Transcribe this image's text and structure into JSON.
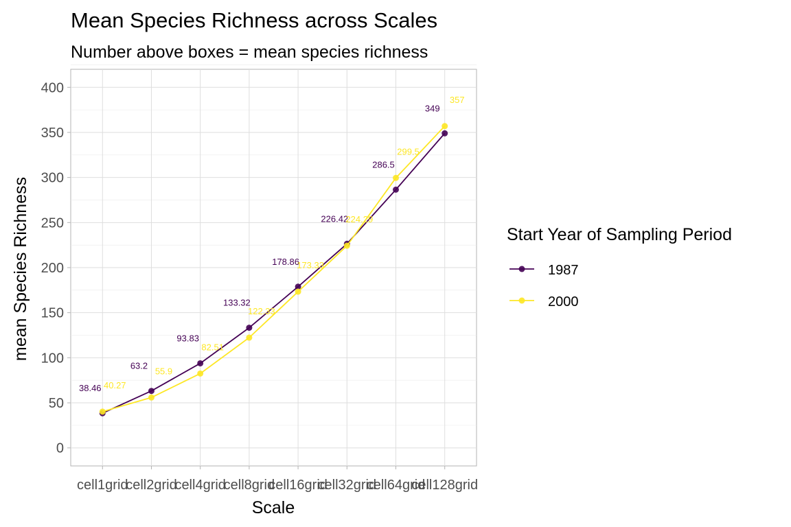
{
  "chart_data": {
    "type": "line",
    "title": "Mean Species Richness across Scales",
    "subtitle": "Number above boxes = mean species richness",
    "xlabel": "Scale",
    "ylabel": "mean Species Richness",
    "categories": [
      "cell1grid",
      "cell2grid",
      "cell4grid",
      "cell8grid",
      "cell16grid",
      "cell32grid",
      "cell64grid",
      "cell128grid"
    ],
    "ylim": [
      -20,
      420
    ],
    "yticks": [
      0,
      50,
      100,
      150,
      200,
      250,
      300,
      350,
      400
    ],
    "grid": true,
    "legend": {
      "title": "Start Year of Sampling Period",
      "position": "right"
    },
    "series": [
      {
        "name": "1987",
        "color": "#440154",
        "values": [
          38.46,
          63.2,
          93.83,
          133.32,
          178.86,
          226.42,
          286.5,
          349
        ],
        "labels": [
          "38.46",
          "63.2",
          "93.83",
          "133.32",
          "178.86",
          "226.42",
          "286.5",
          "349"
        ]
      },
      {
        "name": "2000",
        "color": "#FDE725",
        "values": [
          40.27,
          55.9,
          82.51,
          122.33,
          173.33,
          224.29,
          299.5,
          357
        ],
        "labels": [
          "40.27",
          "55.9",
          "82.51",
          "122.33",
          "173.33",
          "224.29",
          "299.5",
          "357"
        ]
      }
    ]
  }
}
